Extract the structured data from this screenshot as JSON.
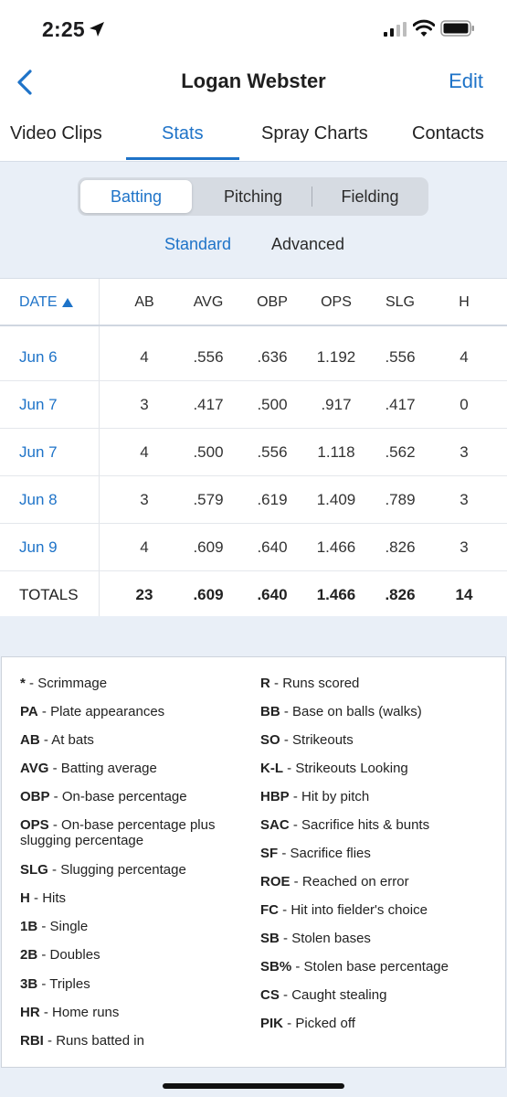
{
  "status_bar": {
    "time": "2:25"
  },
  "nav": {
    "title": "Logan Webster",
    "edit_label": "Edit"
  },
  "tabs": [
    {
      "label": "Video Clips",
      "active": false
    },
    {
      "label": "Stats",
      "active": true
    },
    {
      "label": "Spray Charts",
      "active": false
    },
    {
      "label": "Contacts",
      "active": false
    }
  ],
  "segmented": {
    "items": [
      "Batting",
      "Pitching",
      "Fielding"
    ],
    "selected": "Batting"
  },
  "subtabs": {
    "standard": "Standard",
    "advanced": "Advanced",
    "selected": "Standard"
  },
  "table": {
    "date_header": "DATE",
    "sort": "ascending",
    "columns": [
      "AB",
      "AVG",
      "OBP",
      "OPS",
      "SLG",
      "H"
    ],
    "rows": [
      {
        "date": "Jun 6",
        "values": [
          "4",
          ".556",
          ".636",
          "1.192",
          ".556",
          "4"
        ]
      },
      {
        "date": "Jun 7",
        "values": [
          "3",
          ".417",
          ".500",
          ".917",
          ".417",
          "0"
        ]
      },
      {
        "date": "Jun 7",
        "values": [
          "4",
          ".500",
          ".556",
          "1.118",
          ".562",
          "3"
        ]
      },
      {
        "date": "Jun 8",
        "values": [
          "3",
          ".579",
          ".619",
          "1.409",
          ".789",
          "3"
        ]
      },
      {
        "date": "Jun 9",
        "values": [
          "4",
          ".609",
          ".640",
          "1.466",
          ".826",
          "3"
        ]
      }
    ],
    "totals": {
      "label": "TOTALS",
      "values": [
        "23",
        ".609",
        ".640",
        "1.466",
        ".826",
        "14"
      ]
    }
  },
  "legend": {
    "left": [
      {
        "abbr": "*",
        "desc": "Scrimmage"
      },
      {
        "abbr": "PA",
        "desc": "Plate appearances"
      },
      {
        "abbr": "AB",
        "desc": "At bats"
      },
      {
        "abbr": "AVG",
        "desc": "Batting average"
      },
      {
        "abbr": "OBP",
        "desc": "On-base percentage"
      },
      {
        "abbr": "OPS",
        "desc": "On-base percentage plus slugging percentage"
      },
      {
        "abbr": "SLG",
        "desc": "Slugging percentage"
      },
      {
        "abbr": "H",
        "desc": "Hits"
      },
      {
        "abbr": "1B",
        "desc": "Single"
      },
      {
        "abbr": "2B",
        "desc": "Doubles"
      },
      {
        "abbr": "3B",
        "desc": "Triples"
      },
      {
        "abbr": "HR",
        "desc": "Home runs"
      },
      {
        "abbr": "RBI",
        "desc": "Runs batted in"
      }
    ],
    "right": [
      {
        "abbr": "R",
        "desc": "Runs scored"
      },
      {
        "abbr": "BB",
        "desc": "Base on balls (walks)"
      },
      {
        "abbr": "SO",
        "desc": "Strikeouts"
      },
      {
        "abbr": "K-L",
        "desc": "Strikeouts Looking"
      },
      {
        "abbr": "HBP",
        "desc": "Hit by pitch"
      },
      {
        "abbr": "SAC",
        "desc": "Sacrifice hits & bunts"
      },
      {
        "abbr": "SF",
        "desc": "Sacrifice flies"
      },
      {
        "abbr": "ROE",
        "desc": "Reached on error"
      },
      {
        "abbr": "FC",
        "desc": "Hit into fielder's choice"
      },
      {
        "abbr": "SB",
        "desc": "Stolen bases"
      },
      {
        "abbr": "SB%",
        "desc": "Stolen base percentage"
      },
      {
        "abbr": "CS",
        "desc": "Caught stealing"
      },
      {
        "abbr": "PIK",
        "desc": "Picked off"
      }
    ]
  },
  "colors": {
    "accent": "#1e73c8",
    "panel_bg": "#e9eff7"
  },
  "icons": [
    "location-arrow-icon",
    "cellular-signal-icon",
    "wifi-icon",
    "battery-icon",
    "back-chevron-icon",
    "sort-ascending-icon"
  ]
}
